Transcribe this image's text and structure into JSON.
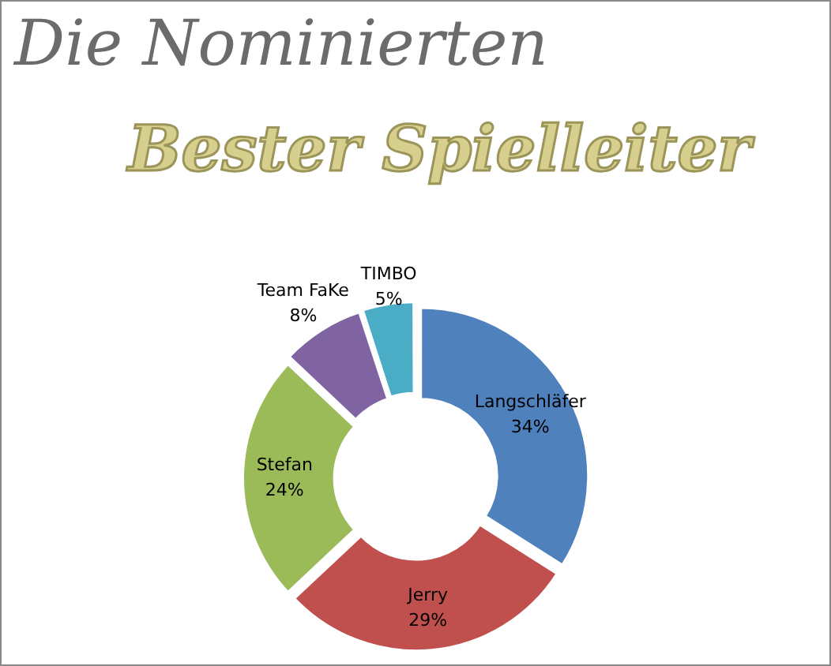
{
  "chart_data": {
    "type": "donut",
    "title": "Die Nominierten",
    "subtitle": "Bester Spielleiter",
    "categories": [
      "Langschläfer",
      "Jerry",
      "Stefan",
      "Team FaKe",
      "TIMBO"
    ],
    "values": [
      34,
      29,
      24,
      8,
      5
    ],
    "value_labels": [
      "34%",
      "29%",
      "24%",
      "8%",
      "5%"
    ],
    "colors": [
      "#4f81bd",
      "#c0504d",
      "#9bbb59",
      "#8064a2",
      "#4bacc6"
    ],
    "legend": false
  }
}
